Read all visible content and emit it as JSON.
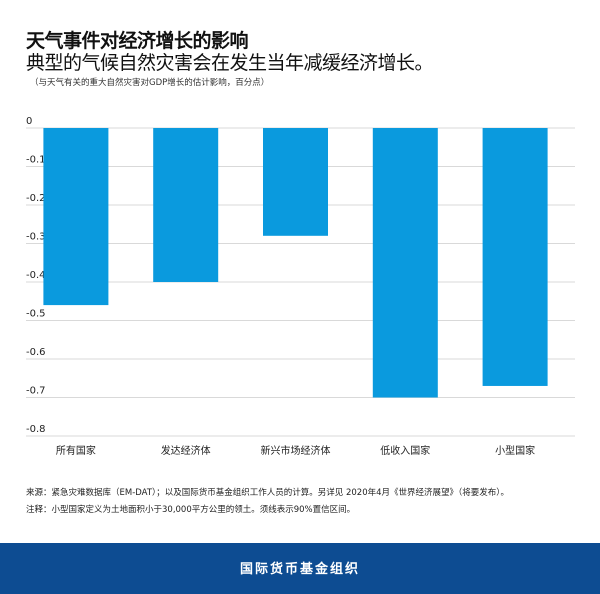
{
  "header": {
    "title": "天气事件对经济增长的影响",
    "subtitle": "典型的气候自然灾害会在发生当年减缓经济增长。",
    "unit_note": "（与天气有关的重大自然灾害对GDP增长的估计影响，百分点）"
  },
  "chart_data": {
    "type": "bar",
    "title": "天气事件对经济增长的影响",
    "categories": [
      "所有国家",
      "发达经济体",
      "新兴市场经济体",
      "低收入国家",
      "小型国家"
    ],
    "values": [
      -0.46,
      -0.4,
      -0.28,
      -0.7,
      -0.67
    ],
    "ylim": [
      -0.8,
      0
    ],
    "yticks": [
      "0",
      "-0.1",
      "-0.2",
      "-0.3",
      "-0.4",
      "-0.5",
      "-0.6",
      "-0.7",
      "-0.8"
    ],
    "ytick_values": [
      0,
      -0.1,
      -0.2,
      -0.3,
      -0.4,
      -0.5,
      -0.6,
      -0.7,
      -0.8
    ],
    "grid": true,
    "bar_color": "#0a9ade",
    "grid_color": "#d9d9d9"
  },
  "footer": {
    "source": "来源：紧急灾难数据库（EM-DAT）；以及国际货币基金组织工作人员的计算。另详见 2020年4月《世界经济展望》（将要发布）。",
    "notes": "注释：小型国家定义为土地面积小于30,000平方公里的领土。须线表示90%置信区间。",
    "org": "国际货币基金组织",
    "band_color": "#0d4c92"
  }
}
